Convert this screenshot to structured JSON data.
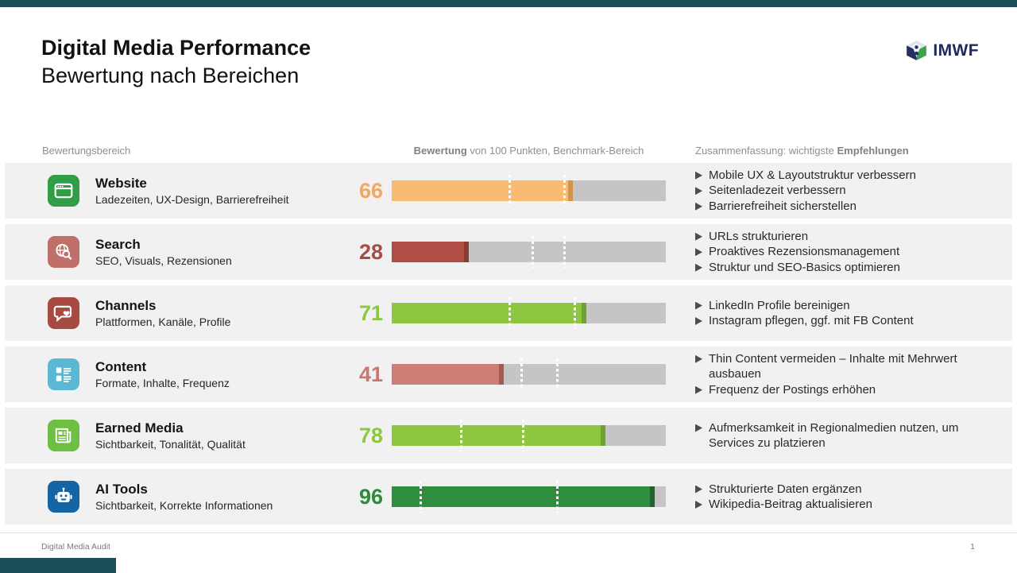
{
  "slide": {
    "title": "Digital Media Performance",
    "subtitle": "Bewertung nach Bereichen",
    "logo": {
      "text": "IMWF",
      "icon": "imwf-cube-logo"
    },
    "footer": {
      "label": "Digital Media Audit",
      "page_number": "1"
    },
    "colors": {
      "accent_bar": "#1d4f59",
      "row_background": "#f1f1f2",
      "bar_track": "#c5c5c5"
    }
  },
  "columns": {
    "area_header": "Bewertungsbereich",
    "score_header_bold": "Bewertung",
    "score_header_rest": " von 100 Punkten, Benchmark-Bereich",
    "summary_header_prefix": "Zusammenfassung: wichtigste ",
    "summary_header_bold": "Empfehlungen"
  },
  "chart_data": {
    "type": "bar",
    "orientation": "horizontal",
    "value_max": 100,
    "benchmark_marker_style": "white dotted vertical lines marking benchmark range",
    "rows": [
      {
        "name": "Website",
        "subtitle": "Ladezeiten, UX-Design, Barrierefreiheit",
        "score": 66,
        "benchmark_low": 42.5,
        "benchmark_high": 62.5,
        "bar_color": "#f9bb72",
        "cap_color": "#d3944c",
        "score_color": "#f2a85e",
        "icon": "browser-window-icon",
        "icon_bg": "#2f9e47",
        "recommendations": [
          "Mobile UX & Layoutstruktur verbessern",
          "Seitenladezeit verbessern",
          "Barrierefreiheit sicherstellen"
        ]
      },
      {
        "name": "Search",
        "subtitle": "SEO, Visuals, Rezensionen",
        "score": 28,
        "benchmark_low": 51,
        "benchmark_high": 62.5,
        "bar_color": "#b04e45",
        "cap_color": "#8c3b34",
        "score_color": "#a94b42",
        "icon": "globe-search-icon",
        "icon_bg": "#c0706a",
        "recommendations": [
          "URLs strukturieren",
          "Proaktives Rezensionsmanagement",
          "Struktur und SEO-Basics optimieren"
        ]
      },
      {
        "name": "Channels",
        "subtitle": "Plattformen, Kanäle, Profile",
        "score": 71,
        "benchmark_low": 42.5,
        "benchmark_high": 66.5,
        "bar_color": "#8dc63f",
        "cap_color": "#6ea32f",
        "score_color": "#8dc63f",
        "icon": "chat-heart-icon",
        "icon_bg": "#a74a42",
        "recommendations": [
          "LinkedIn Profile bereinigen",
          "Instagram pflegen, ggf. mit FB Content"
        ]
      },
      {
        "name": "Content",
        "subtitle": "Formate, Inhalte, Frequenz",
        "score": 41,
        "benchmark_low": 47,
        "benchmark_high": 60,
        "bar_color": "#cd7f77",
        "cap_color": "#a25a52",
        "score_color": "#c7786f",
        "icon": "content-layout-icon",
        "icon_bg": "#5bb8d4",
        "recommendations": [
          "Thin Content vermeiden – Inhalte mit Mehrwert ausbauen",
          "Frequenz der Postings erhöhen"
        ]
      },
      {
        "name": "Earned Media",
        "subtitle": "Sichtbarkeit, Tonalität, Qualität",
        "score": 78,
        "benchmark_low": 25,
        "benchmark_high": 47.5,
        "bar_color": "#8dc63f",
        "cap_color": "#6ea32f",
        "score_color": "#8dc63f",
        "icon": "newspaper-icon",
        "icon_bg": "#6fbf44",
        "recommendations": [
          "Aufmerksamkeit in Regionalmedien nutzen, um Services zu platzieren"
        ]
      },
      {
        "name": "AI Tools",
        "subtitle": "Sichtbarkeit, Korrekte Informationen",
        "score": 96,
        "benchmark_low": 10,
        "benchmark_high": 60,
        "bar_color": "#2f8d3e",
        "cap_color": "#1f6330",
        "score_color": "#2e8b3c",
        "icon": "robot-icon",
        "icon_bg": "#1565a5",
        "recommendations": [
          "Strukturierte Daten ergänzen",
          "Wikipedia-Beitrag aktualisieren"
        ]
      }
    ]
  }
}
